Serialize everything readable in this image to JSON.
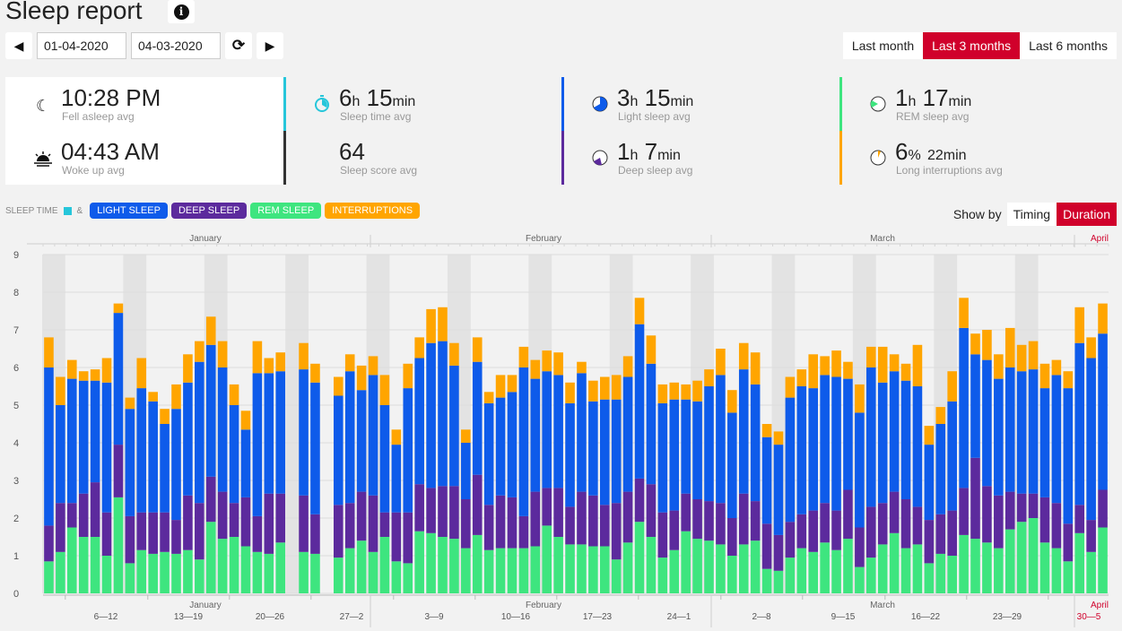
{
  "header": {
    "title": "Sleep report",
    "info_icon": "info-icon"
  },
  "dates": {
    "from": "01-04-2020",
    "to": "04-03-2020",
    "prev_icon": "triangle-left-icon",
    "next_icon": "triangle-right-icon",
    "refresh_icon": "refresh-icon"
  },
  "range": {
    "options": [
      "Last month",
      "Last 3 months",
      "Last 6 months"
    ],
    "selected": "Last 3 months"
  },
  "stats": {
    "fell_asleep": {
      "value": "10:28 PM",
      "label": "Fell asleep avg"
    },
    "woke_up": {
      "value": "04:43 AM",
      "label": "Woke up avg"
    },
    "sleep_time": {
      "h": "6",
      "h_unit": "h",
      "m": "15",
      "m_unit": "min",
      "label": "Sleep time avg",
      "color": "#26c6da"
    },
    "sleep_score": {
      "value": "64",
      "label": "Sleep score avg",
      "color": "#333333"
    },
    "light_sleep": {
      "h": "3",
      "h_unit": "h",
      "m": "15",
      "m_unit": "min",
      "label": "Light sleep avg",
      "color": "#0e5bea"
    },
    "deep_sleep": {
      "h": "1",
      "h_unit": "h",
      "m": "7",
      "m_unit": "min",
      "label": "Deep sleep avg",
      "color": "#5c2a9d"
    },
    "rem_sleep": {
      "h": "1",
      "h_unit": "h",
      "m": "17",
      "m_unit": "min",
      "label": "REM sleep avg",
      "color": "#3ee57f"
    },
    "interruptions": {
      "pct": "6",
      "pct_unit": "%",
      "m": "22",
      "m_unit": "min",
      "label": "Long interruptions avg",
      "color": "#ffa500"
    }
  },
  "legend": {
    "sleep_time": "SLEEP TIME",
    "amp": "&",
    "light": "LIGHT SLEEP",
    "deep": "DEEP SLEEP",
    "rem": "REM SLEEP",
    "interruptions": "INTERRUPTIONS"
  },
  "showby": {
    "label": "Show by",
    "options": [
      "Timing",
      "Duration"
    ],
    "selected": "Duration"
  },
  "colors": {
    "light": "#0e5bea",
    "deep": "#5c2a9d",
    "rem": "#3ee57f",
    "interruptions": "#ffa500",
    "accent": "#d0002b",
    "weekend": "#e3e3e3"
  },
  "chart_data": {
    "type": "bar",
    "stacked": true,
    "ylim": [
      0,
      9
    ],
    "yticks": [
      "0",
      "1",
      "2",
      "3",
      "4",
      "5",
      "6",
      "7",
      "8",
      "9"
    ],
    "months": [
      "January",
      "February",
      "March",
      "April"
    ],
    "weeks": [
      "6—12",
      "13—19",
      "20—26",
      "27—2",
      "3—9",
      "10—16",
      "17—23",
      "24—1",
      "2—8",
      "9—15",
      "16—22",
      "23—29",
      "30—5"
    ],
    "series": [
      {
        "name": "REM SLEEP",
        "values": [
          0.85,
          1.1,
          1.75,
          1.5,
          1.5,
          1.0,
          2.55,
          0.8,
          1.15,
          1.05,
          1.1,
          1.05,
          1.15,
          0.9,
          1.9,
          1.45,
          1.5,
          1.25,
          1.1,
          1.05,
          1.35,
          0,
          1.1,
          1.05,
          0,
          0.95,
          1.2,
          1.4,
          1.1,
          1.5,
          0.85,
          0.8,
          1.65,
          1.6,
          1.5,
          1.45,
          1.2,
          1.55,
          1.15,
          1.2,
          1.2,
          1.2,
          1.25,
          1.8,
          1.5,
          1.3,
          1.3,
          1.25,
          1.25,
          0.9,
          1.35,
          1.9,
          1.5,
          0.95,
          1.15,
          1.65,
          1.45,
          1.4,
          1.3,
          1.0,
          1.3,
          1.4,
          0.65,
          0.6,
          0.95,
          1.2,
          1.1,
          1.35,
          1.15,
          1.45,
          0.7,
          0.95,
          1.3,
          1.6,
          1.2,
          1.3,
          0.8,
          1.05,
          1.0,
          1.55,
          1.45,
          1.35,
          1.2,
          1.7,
          1.9,
          2.0,
          1.35,
          1.2,
          0.85,
          1.6,
          1.1,
          1.75
        ]
      },
      {
        "name": "DEEP SLEEP",
        "values": [
          0.95,
          1.3,
          0.65,
          1.15,
          1.45,
          1.15,
          1.4,
          1.25,
          1.0,
          1.1,
          1.05,
          0.9,
          1.45,
          1.5,
          1.2,
          1.25,
          0.9,
          1.3,
          0.95,
          1.6,
          1.3,
          0,
          1.5,
          1.05,
          0,
          1.4,
          1.2,
          1.3,
          1.5,
          0.65,
          1.3,
          1.35,
          1.25,
          1.2,
          1.35,
          1.4,
          1.3,
          1.6,
          1.2,
          1.4,
          1.35,
          0.85,
          1.45,
          1.0,
          1.3,
          1.0,
          1.4,
          1.35,
          1.1,
          1.5,
          1.35,
          1.15,
          1.4,
          1.2,
          1.05,
          1.0,
          1.05,
          1.05,
          1.1,
          1.0,
          1.35,
          1.05,
          1.2,
          0.95,
          0.95,
          0.9,
          1.1,
          1.05,
          1.05,
          1.3,
          1.05,
          1.35,
          1.1,
          1.1,
          1.3,
          1.0,
          1.15,
          1.05,
          1.2,
          1.25,
          2.15,
          1.5,
          1.4,
          1.0,
          0.75,
          0.65,
          1.2,
          1.2,
          1.0,
          0.75,
          0.85,
          1.0
        ]
      },
      {
        "name": "LIGHT SLEEP",
        "values": [
          4.2,
          2.6,
          3.3,
          3.0,
          2.7,
          3.45,
          3.5,
          2.85,
          3.3,
          2.95,
          2.35,
          2.95,
          3.0,
          3.75,
          3.5,
          3.3,
          2.6,
          1.8,
          3.8,
          3.2,
          3.25,
          0,
          3.35,
          3.5,
          0,
          2.9,
          3.5,
          2.7,
          3.2,
          2.85,
          1.8,
          3.3,
          3.35,
          3.85,
          3.85,
          3.2,
          1.5,
          3.0,
          2.7,
          2.6,
          2.8,
          3.95,
          3.0,
          3.1,
          3.0,
          2.75,
          3.15,
          2.5,
          2.8,
          2.75,
          3.05,
          4.1,
          3.2,
          2.9,
          2.95,
          2.5,
          2.6,
          3.05,
          3.4,
          2.8,
          3.3,
          3.1,
          2.3,
          2.4,
          3.3,
          3.4,
          3.25,
          3.4,
          3.55,
          2.95,
          3.05,
          3.7,
          3.2,
          3.2,
          3.15,
          3.2,
          2.0,
          2.4,
          2.9,
          4.25,
          2.75,
          3.35,
          3.1,
          3.3,
          3.25,
          3.3,
          2.9,
          3.4,
          3.6,
          4.3,
          4.3,
          4.15
        ]
      },
      {
        "name": "INTERRUPTIONS",
        "values": [
          0.8,
          0.75,
          0.5,
          0.25,
          0.3,
          0.65,
          0.25,
          0.3,
          0.8,
          0.25,
          0.4,
          0.65,
          0.75,
          0.55,
          0.75,
          0.7,
          0.55,
          0.5,
          0.85,
          0.4,
          0.5,
          0,
          0.7,
          0.5,
          0,
          0.5,
          0.45,
          0.65,
          0.5,
          0.8,
          0.4,
          0.65,
          0.55,
          0.9,
          0.9,
          0.6,
          0.35,
          0.65,
          0.3,
          0.6,
          0.45,
          0.55,
          0.5,
          0.55,
          0.6,
          0.55,
          0.3,
          0.55,
          0.6,
          0.65,
          0.55,
          0.7,
          0.75,
          0.5,
          0.45,
          0.4,
          0.55,
          0.45,
          0.7,
          0.6,
          0.7,
          0.85,
          0.35,
          0.35,
          0.55,
          0.45,
          0.9,
          0.5,
          0.7,
          0.45,
          0.75,
          0.55,
          0.95,
          0.45,
          0.45,
          1.1,
          0.5,
          0.45,
          0.8,
          0.8,
          0.55,
          0.8,
          0.65,
          1.05,
          0.7,
          0.75,
          0.65,
          0.4,
          0.45,
          0.95,
          0.55,
          0.8
        ]
      }
    ]
  }
}
